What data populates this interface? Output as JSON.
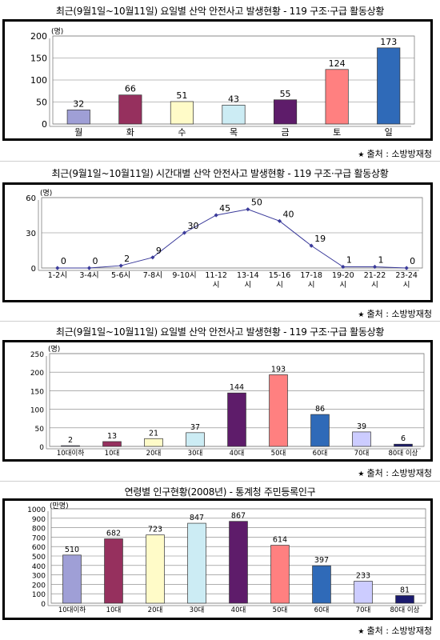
{
  "charts": [
    {
      "title": "최근(9월1일~10월11일) 요일별 산악 안전사고 발생현황 - 119 구조·구급 활동상황",
      "source": "출처 : 소방방재청",
      "unit": "(명)"
    },
    {
      "title": "최근(9월1일~10월11일) 시간대별 산악 안전사고 발생현황 - 119 구조·구급 활동상황",
      "source": "출처 : 소방방재청",
      "unit": "(명)"
    },
    {
      "title": "최근(9월1일~10월11일) 요일별 산악 안전사고 발생현황 - 119 구조·구급 활동상황",
      "source": "출처 : 소방방재청",
      "unit": "(명)"
    },
    {
      "title": "연령별 인구현황(2008년) - 통계청 주민등록인구",
      "source": "출처 : 소방방재청",
      "unit": "(만명)"
    }
  ],
  "chart_data": [
    {
      "type": "bar",
      "title": "최근(9월1일~10월11일) 요일별 산악 안전사고 발생현황 - 119 구조·구급 활동상황",
      "categories": [
        "월",
        "화",
        "수",
        "목",
        "금",
        "토",
        "일"
      ],
      "values": [
        32,
        66,
        51,
        43,
        55,
        124,
        173
      ],
      "colors": [
        "#9f9fd6",
        "#96305e",
        "#fffbc8",
        "#ccecf4",
        "#5e1c6a",
        "#ff8080",
        "#2f6ab8"
      ],
      "ylim": [
        0,
        200
      ],
      "yticks": [
        0,
        50,
        100,
        150,
        200
      ],
      "ylabel": "(명)",
      "grid": true
    },
    {
      "type": "line",
      "title": "최근(9월1일~10월11일) 시간대별 산악 안전사고 발생현황 - 119 구조·구급 활동상황",
      "categories": [
        "1-2시",
        "3-4시",
        "5-6시",
        "7-8시",
        "9-10시",
        "11-12\n시",
        "13-14\n시",
        "15-16\n시",
        "17-18\n시",
        "19-20\n시",
        "21-22\n시",
        "23-24\n시"
      ],
      "values": [
        0,
        0,
        2,
        9,
        30,
        45,
        50,
        40,
        19,
        1,
        1,
        0
      ],
      "line_color": "#3a3a9a",
      "ylim": [
        0,
        60
      ],
      "yticks": [
        0,
        30,
        60
      ],
      "ylabel": "(명)",
      "grid": true
    },
    {
      "type": "bar",
      "title": "최근(9월1일~10월11일) 요일별 산악 안전사고 발생현황 - 119 구조·구급 활동상황",
      "categories": [
        "10대이하",
        "10대",
        "20대",
        "30대",
        "40대",
        "50대",
        "60대",
        "70대",
        "80대 이상"
      ],
      "values": [
        2,
        13,
        21,
        37,
        144,
        193,
        86,
        39,
        6
      ],
      "colors": [
        "#9f9fd6",
        "#96305e",
        "#fffbc8",
        "#ccecf4",
        "#5e1c6a",
        "#ff8080",
        "#2f6ab8",
        "#ccccff",
        "#1a1a6e"
      ],
      "ylim": [
        0,
        250
      ],
      "yticks": [
        0,
        50,
        100,
        150,
        200,
        250
      ],
      "ylabel": "(명)",
      "grid": true
    },
    {
      "type": "bar",
      "title": "연령별 인구현황(2008년) - 통계청 주민등록인구",
      "categories": [
        "10대이하",
        "10대",
        "20대",
        "30대",
        "40대",
        "50대",
        "60대",
        "70대",
        "80대 이상"
      ],
      "values": [
        510,
        682,
        723,
        847,
        867,
        614,
        397,
        233,
        81
      ],
      "colors": [
        "#9f9fd6",
        "#96305e",
        "#fffbc8",
        "#ccecf4",
        "#5e1c6a",
        "#ff8080",
        "#2f6ab8",
        "#ccccff",
        "#1a1a6e"
      ],
      "ylim": [
        0,
        1000
      ],
      "yticks": [
        0,
        100,
        200,
        300,
        400,
        500,
        600,
        700,
        800,
        900,
        1000
      ],
      "ylabel": "(만명)",
      "grid": true
    }
  ]
}
